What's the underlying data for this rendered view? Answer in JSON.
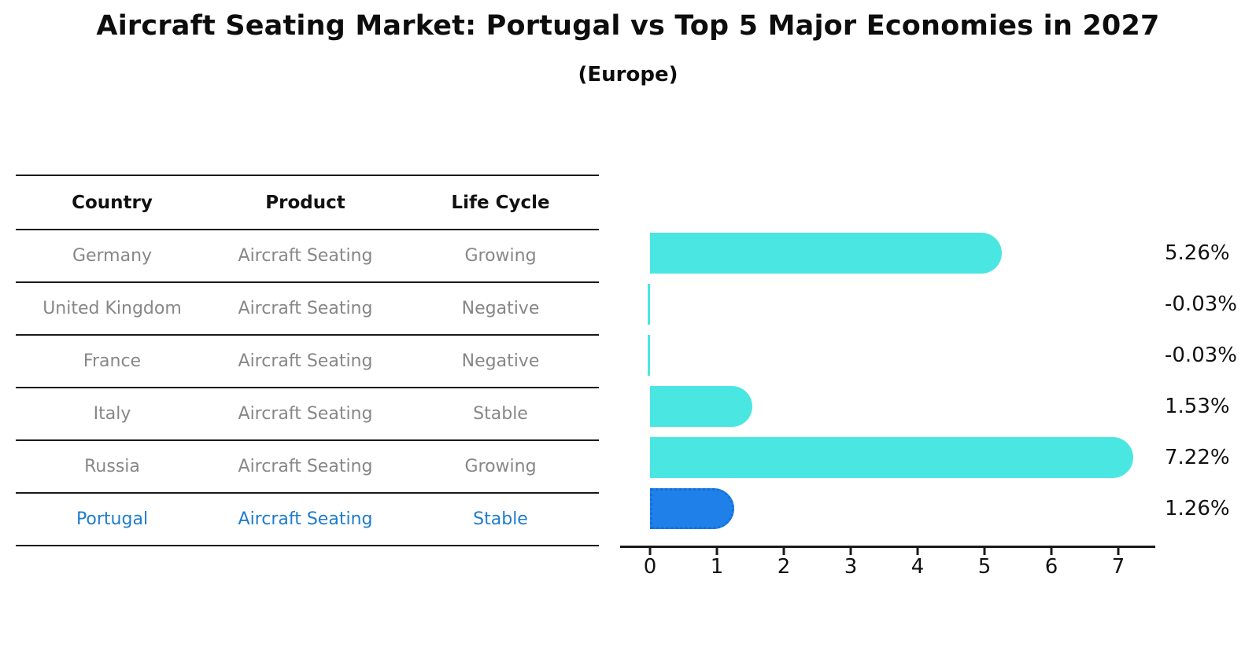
{
  "title": "Aircraft Seating Market: Portugal vs Top 5 Major Economies in 2027",
  "subtitle": "(Europe)",
  "table": {
    "headers": [
      "Country",
      "Product",
      "Life Cycle"
    ],
    "rows": [
      [
        "Germany",
        "Aircraft Seating",
        "Growing"
      ],
      [
        "United Kingdom",
        "Aircraft Seating",
        "Negative"
      ],
      [
        "France",
        "Aircraft Seating",
        "Negative"
      ],
      [
        "Italy",
        "Aircraft Seating",
        "Stable"
      ],
      [
        "Russia",
        "Aircraft Seating",
        "Growing"
      ],
      [
        "Portugal",
        "Aircraft Seating",
        "Stable"
      ]
    ],
    "highlight_row": 5
  },
  "chart_data": {
    "type": "bar",
    "orientation": "horizontal",
    "title": "Aircraft Seating Market: Portugal vs Top 5 Major Economies in 2027",
    "subtitle": "(Europe)",
    "categories": [
      "Germany",
      "United Kingdom",
      "France",
      "Italy",
      "Russia",
      "Portugal"
    ],
    "values": [
      5.26,
      -0.03,
      -0.03,
      1.53,
      7.22,
      1.26
    ],
    "value_labels": [
      "5.26%",
      "-0.03%",
      "-0.03%",
      "1.53%",
      "7.22%",
      "1.26%"
    ],
    "xticks": [
      0,
      1,
      2,
      3,
      4,
      5,
      6,
      7
    ],
    "xlim": [
      -0.45,
      7.55
    ],
    "grid": false,
    "legend": "none",
    "bar_color": "#4AE6E2",
    "highlight_bar_color": "#1E80E8",
    "highlight_border_color": "#156FD8",
    "highlight_index": 5
  },
  "colors": {
    "background": "#ffffff",
    "bar_cyan": "#4AE6E2",
    "bar_blue": "#1E80E8",
    "highlight_text_blue": "#1F7CCD",
    "muted_text_gray": "#878787",
    "axis_black": "#1a1a1a"
  }
}
